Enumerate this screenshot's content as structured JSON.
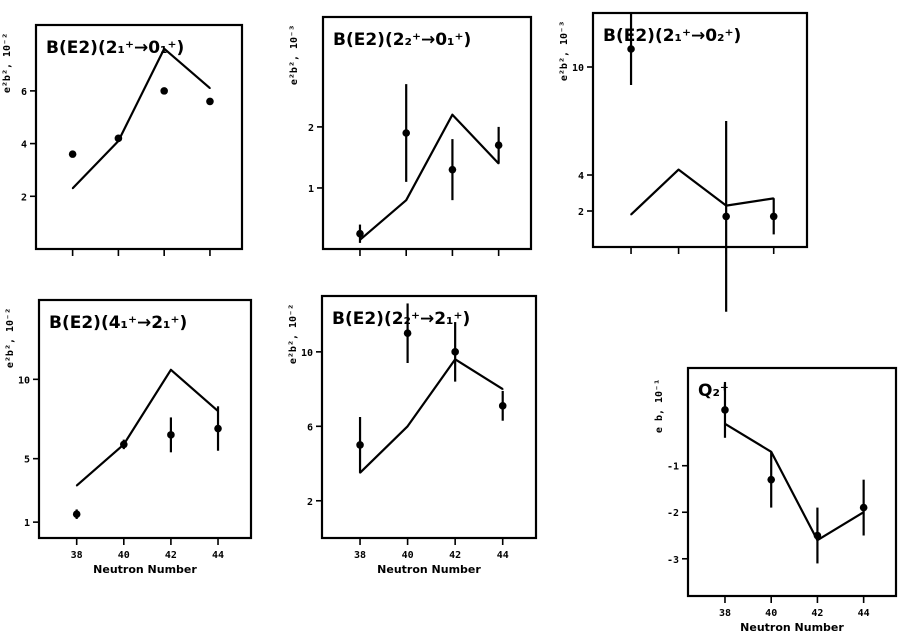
{
  "chart_data": [
    {
      "type": "line",
      "title": "B(E2)(2₁⁺→0₁⁺)",
      "ylabel": "e²b², 10⁻²",
      "xlabel": "",
      "x": [
        38,
        40,
        42,
        44
      ],
      "ylim": [
        0,
        8.5
      ],
      "yticks": [
        "2",
        "4",
        "6"
      ],
      "ytick_values": [
        2,
        4,
        6
      ],
      "xticks": [],
      "series": [
        {
          "kind": "line",
          "values": [
            2.3,
            4.1,
            7.6,
            6.1
          ]
        },
        {
          "kind": "points",
          "values": [
            3.6,
            4.2,
            6.0,
            5.6
          ],
          "errors": [
            0,
            0,
            0,
            0
          ]
        }
      ]
    },
    {
      "type": "line",
      "title": "B(E2)(2₂⁺→0₁⁺)",
      "ylabel": "e²b², 10⁻³",
      "xlabel": "",
      "x": [
        38,
        40,
        42,
        44
      ],
      "ylim": [
        0,
        3.8
      ],
      "yticks": [
        "1",
        "2"
      ],
      "ytick_values": [
        1,
        2
      ],
      "xticks": [],
      "series": [
        {
          "kind": "line",
          "values": [
            0.15,
            0.8,
            2.2,
            1.4
          ]
        },
        {
          "kind": "points",
          "values": [
            0.25,
            1.9,
            1.3,
            1.7
          ],
          "errors": [
            0.15,
            0.8,
            0.5,
            0.3
          ]
        }
      ]
    },
    {
      "type": "line",
      "title": "B(E2)(2₁⁺→0₂⁺)",
      "ylabel": "e²b², 10⁻³",
      "xlabel": "",
      "x": [
        38,
        40,
        42,
        44
      ],
      "ylim": [
        0,
        13
      ],
      "yticks": [
        "2",
        "4",
        "10"
      ],
      "ytick_values": [
        2,
        4,
        10
      ],
      "xticks": [],
      "series": [
        {
          "kind": "line",
          "values": [
            1.8,
            4.3,
            2.3,
            2.7
          ]
        },
        {
          "kind": "points",
          "values": [
            11.0,
            null,
            1.7,
            1.7
          ],
          "errors": [
            2.0,
            0,
            5.3,
            1.0
          ]
        }
      ]
    },
    {
      "type": "line",
      "title": "B(E2)(4₁⁺→2₁⁺)",
      "ylabel": "e²b², 10⁻²",
      "xlabel": "Neutron Number",
      "x": [
        38,
        40,
        42,
        44
      ],
      "ylim": [
        0,
        15
      ],
      "yticks": [
        "1",
        "5",
        "10"
      ],
      "ytick_values": [
        1,
        5,
        10
      ],
      "xticks": [
        "38",
        "40",
        "42",
        "44"
      ],
      "series": [
        {
          "kind": "line",
          "values": [
            3.3,
            5.9,
            10.6,
            8.0
          ]
        },
        {
          "kind": "points",
          "values": [
            1.5,
            5.9,
            6.5,
            6.9
          ],
          "errors": [
            0.3,
            0.3,
            1.1,
            1.4
          ]
        }
      ]
    },
    {
      "type": "line",
      "title": "B(E2)(2₂⁺→2₁⁺)",
      "ylabel": "e²b², 10⁻²",
      "xlabel": "Neutron Number",
      "x": [
        38,
        40,
        42,
        44
      ],
      "ylim": [
        0,
        13
      ],
      "yticks": [
        "2",
        "6",
        "10"
      ],
      "ytick_values": [
        2,
        6,
        10
      ],
      "xticks": [
        "38",
        "40",
        "42",
        "44"
      ],
      "series": [
        {
          "kind": "line",
          "values": [
            3.5,
            6.0,
            9.6,
            8.0
          ]
        },
        {
          "kind": "points",
          "values": [
            5.0,
            11.0,
            10.0,
            7.1
          ],
          "errors": [
            1.5,
            1.6,
            1.6,
            0.8
          ]
        }
      ]
    },
    {
      "type": "line",
      "title": "Q₂⁺",
      "ylabel": "e b, 10⁻¹",
      "xlabel": "Neutron Number",
      "x": [
        38,
        40,
        42,
        44
      ],
      "ylim": [
        -3.8,
        1.1
      ],
      "yticks": [
        "-1",
        "-2",
        "-3"
      ],
      "ytick_values": [
        -1,
        -2,
        -3
      ],
      "xticks": [
        "38",
        "40",
        "42",
        "44"
      ],
      "series": [
        {
          "kind": "line",
          "values": [
            -0.1,
            -0.7,
            -2.6,
            -2.0
          ]
        },
        {
          "kind": "points",
          "values": [
            0.2,
            -1.3,
            -2.5,
            -1.9
          ],
          "errors": [
            0.6,
            0.6,
            0.6,
            0.6
          ]
        }
      ]
    }
  ]
}
